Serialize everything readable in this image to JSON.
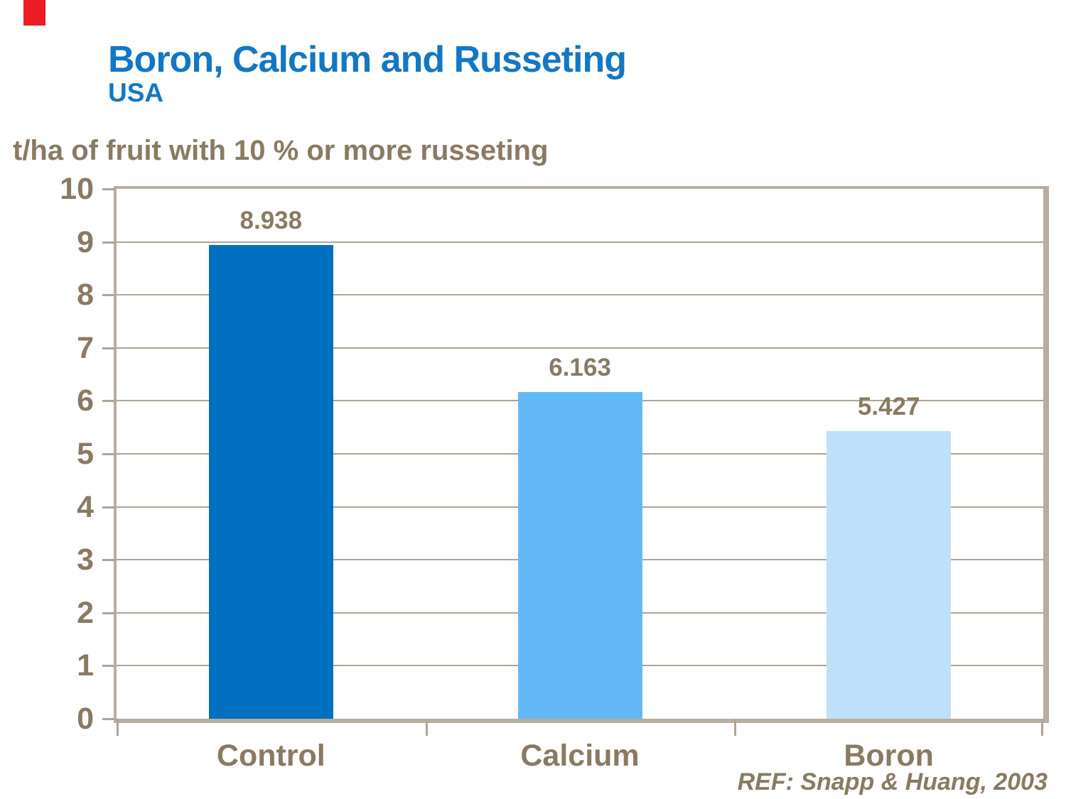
{
  "slide": {
    "title": "Boron, Calcium and Russeting",
    "subtitle": "USA",
    "reference": "REF: Snapp & Huang, 2003"
  },
  "colors": {
    "title_blue": "#1277C5",
    "text_brown": "#8A7A62",
    "gridline": "#AFA494",
    "plot_border": "#B7ADA1",
    "accent_red": "#EC1C24"
  },
  "chart_data": {
    "type": "bar",
    "title": "Boron, Calcium and Russeting",
    "subtitle": "USA",
    "ylabel": "t/ha of fruit with 10 % or more russeting",
    "xlabel": "",
    "categories": [
      "Control",
      "Calcium",
      "Boron"
    ],
    "values": [
      8.938,
      6.163,
      5.427
    ],
    "value_labels": [
      "8.938",
      "6.163",
      "5.427"
    ],
    "bar_colors": [
      "#0070C0",
      "#63B9F8",
      "#BFE0FB"
    ],
    "ylim": [
      0,
      10
    ],
    "yticks": [
      0,
      1,
      2,
      3,
      4,
      5,
      6,
      7,
      8,
      9,
      10
    ],
    "grid": true,
    "legend": false,
    "annotation": "REF: Snapp & Huang, 2003"
  }
}
